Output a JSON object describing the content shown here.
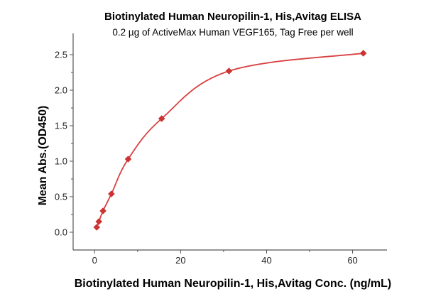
{
  "chart_data": {
    "type": "scatter",
    "title": "Biotinylated Human Neuropilin-1, His,Avitag ELISA",
    "subtitle": "0.2 µg of ActiveMax Human VEGF165, Tag Free per well",
    "xlabel": "Biotinylated Human Neuropilin-1, His,Avitag Conc. (ng/mL)",
    "ylabel": "Mean Abs.(OD450)",
    "xlim": [
      -5,
      68
    ],
    "ylim": [
      -0.25,
      2.8
    ],
    "xticks": [
      0,
      20,
      40,
      60
    ],
    "yticks": [
      0.0,
      0.5,
      1.0,
      1.5,
      2.0,
      2.5
    ],
    "ytick_labels": [
      "0.0",
      "0.5",
      "1.0",
      "1.5",
      "2.0",
      "2.5"
    ],
    "grid": false,
    "series": [
      {
        "x": [
          0.49,
          0.98,
          1.95,
          3.9,
          7.8,
          15.6,
          31.25,
          62.5
        ],
        "y": [
          0.07,
          0.15,
          0.3,
          0.54,
          1.03,
          1.6,
          2.27,
          2.52
        ]
      }
    ],
    "fit_curve": {
      "type": "line",
      "color": "#d94040"
    },
    "marker": {
      "shape": "diamond",
      "color": "#cc3333"
    },
    "axis_color": "#555555"
  }
}
